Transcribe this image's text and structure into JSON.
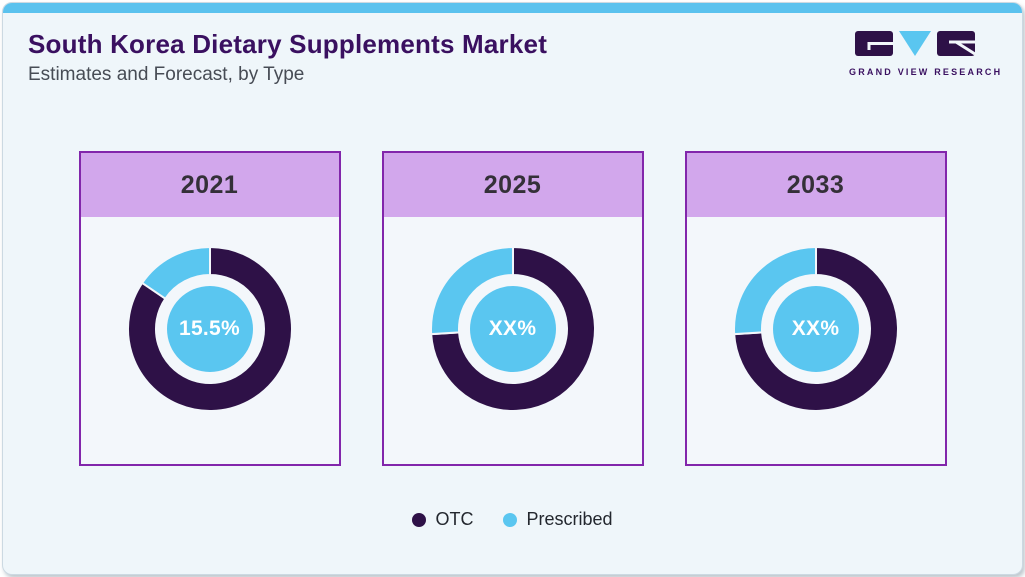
{
  "page": {
    "title": "South Korea Dietary Supplements Market",
    "subtitle": "Estimates and Forecast, by Type"
  },
  "logo": {
    "text": "GRAND VIEW RESEARCH"
  },
  "colors": {
    "brand_purple": "#3a1060",
    "topbar_blue": "#5bc2ee",
    "card_border": "#8226ab",
    "card_header_bg": "#d2a7ec",
    "card_body_bg": "#f3f7fb",
    "otc": "#2e1147",
    "prescribed": "#5ac6f0"
  },
  "legend": {
    "items": [
      {
        "label": "OTC",
        "color_key": "otc"
      },
      {
        "label": "Prescribed",
        "color_key": "prescribed"
      }
    ]
  },
  "chart_data": {
    "type": "pie",
    "subtype": "donut",
    "title": "South Korea Dietary Supplements Market",
    "subtitle": "Estimates and Forecast, by Type",
    "legend": [
      "OTC",
      "Prescribed"
    ],
    "legend_position": "bottom",
    "series_colors": {
      "OTC": "#2e1147",
      "Prescribed": "#5ac6f0"
    },
    "charts": [
      {
        "year": "2021",
        "center_label": "15.5%",
        "slices": [
          {
            "name": "OTC",
            "pct": 84.5
          },
          {
            "name": "Prescribed",
            "pct": 15.5
          }
        ]
      },
      {
        "year": "2025",
        "center_label": "XX%",
        "slices": [
          {
            "name": "OTC",
            "pct": 74
          },
          {
            "name": "Prescribed",
            "pct": 26
          }
        ]
      },
      {
        "year": "2033",
        "center_label": "XX%",
        "slices": [
          {
            "name": "OTC",
            "pct": 74
          },
          {
            "name": "Prescribed",
            "pct": 26
          }
        ]
      }
    ]
  }
}
